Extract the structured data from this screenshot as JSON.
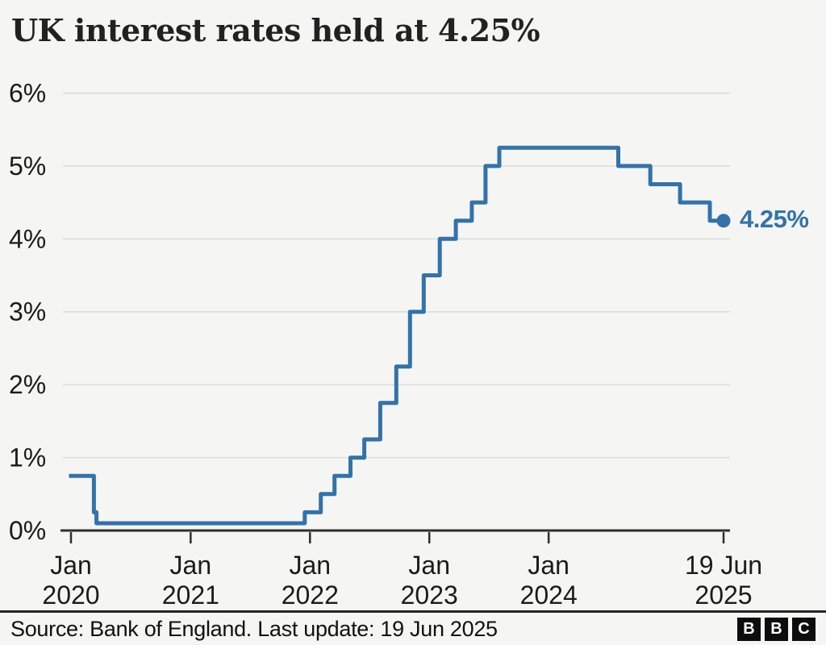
{
  "title": "UK interest rates held at 4.25%",
  "chart_data": {
    "type": "line",
    "style": "step",
    "title": "UK interest rates held at 4.25%",
    "xlabel": "",
    "ylabel": "",
    "unit": "%",
    "ylim": [
      0,
      6
    ],
    "grid": "horizontal",
    "legend": "none",
    "end_label": "4.25%",
    "current_value": 4.25,
    "colors": {
      "line": "#3273a9",
      "grid": "#dcdcdb",
      "axis": "#2e2e2e",
      "text": "#1b1b1b",
      "background": "#f5f5f3"
    },
    "y_ticks": [
      {
        "value": 6,
        "label": "6%"
      },
      {
        "value": 5,
        "label": "5%"
      },
      {
        "value": 4,
        "label": "4%"
      },
      {
        "value": 3,
        "label": "3%"
      },
      {
        "value": 2,
        "label": "2%"
      },
      {
        "value": 1,
        "label": "1%"
      },
      {
        "value": 0,
        "label": "0%"
      }
    ],
    "x_ticks": [
      {
        "date": "2020-01-01",
        "top": "Jan",
        "bottom": "2020"
      },
      {
        "date": "2021-01-01",
        "top": "Jan",
        "bottom": "2021"
      },
      {
        "date": "2022-01-01",
        "top": "Jan",
        "bottom": "2022"
      },
      {
        "date": "2023-01-01",
        "top": "Jan",
        "bottom": "2023"
      },
      {
        "date": "2024-01-01",
        "top": "Jan",
        "bottom": "2024"
      },
      {
        "date": "2025-06-19",
        "top": "19 Jun",
        "bottom": "2025"
      }
    ],
    "series": [
      {
        "name": "UK interest rate",
        "points": [
          {
            "date": "2020-01-01",
            "value": 0.75
          },
          {
            "date": "2020-03-11",
            "value": 0.25
          },
          {
            "date": "2020-03-19",
            "value": 0.1
          },
          {
            "date": "2021-12-16",
            "value": 0.25
          },
          {
            "date": "2022-02-03",
            "value": 0.5
          },
          {
            "date": "2022-03-17",
            "value": 0.75
          },
          {
            "date": "2022-05-05",
            "value": 1.0
          },
          {
            "date": "2022-06-16",
            "value": 1.25
          },
          {
            "date": "2022-08-04",
            "value": 1.75
          },
          {
            "date": "2022-09-22",
            "value": 2.25
          },
          {
            "date": "2022-11-03",
            "value": 3.0
          },
          {
            "date": "2022-12-15",
            "value": 3.5
          },
          {
            "date": "2023-02-02",
            "value": 4.0
          },
          {
            "date": "2023-03-23",
            "value": 4.25
          },
          {
            "date": "2023-05-11",
            "value": 4.5
          },
          {
            "date": "2023-06-22",
            "value": 5.0
          },
          {
            "date": "2023-08-03",
            "value": 5.25
          },
          {
            "date": "2024-08-01",
            "value": 5.0
          },
          {
            "date": "2024-11-07",
            "value": 4.75
          },
          {
            "date": "2025-02-06",
            "value": 4.5
          },
          {
            "date": "2025-05-08",
            "value": 4.25
          },
          {
            "date": "2025-06-19",
            "value": 4.25
          }
        ]
      }
    ]
  },
  "footer": {
    "source": "Source: Bank of England. Last update: 19 Jun 2025",
    "logo_letters": [
      "B",
      "B",
      "C"
    ]
  }
}
